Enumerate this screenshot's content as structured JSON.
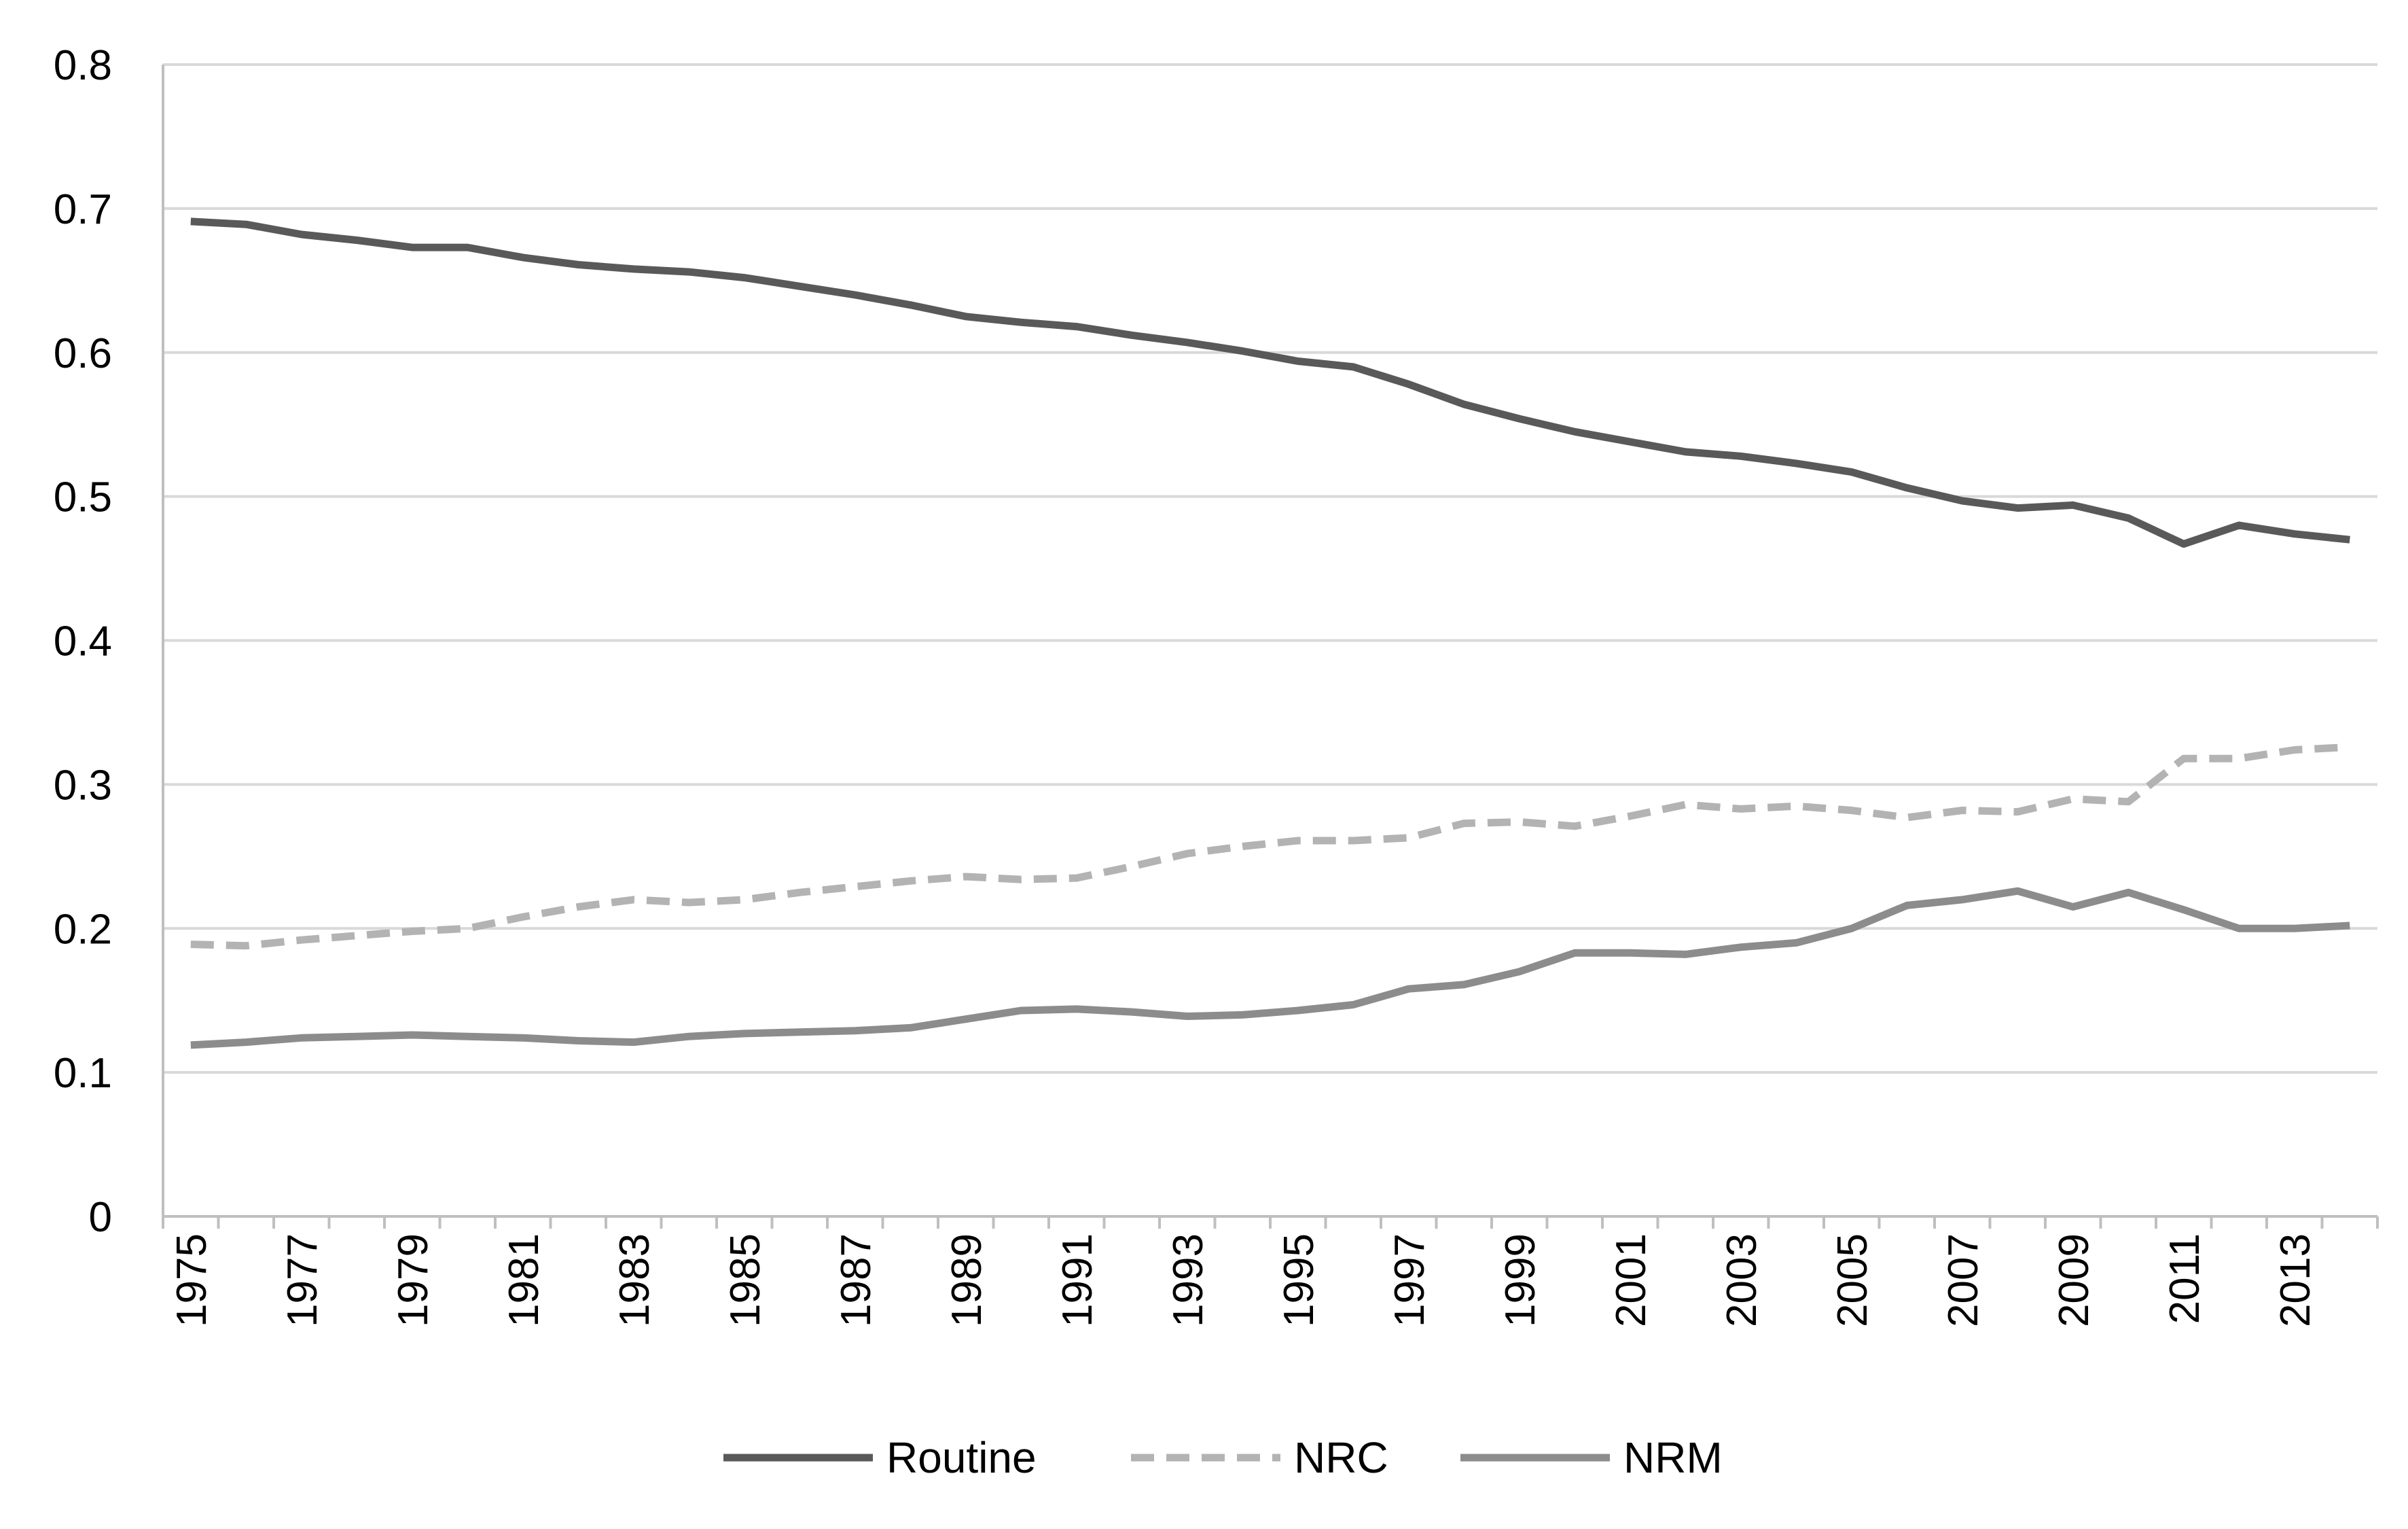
{
  "chart_data": {
    "type": "line",
    "title": "",
    "xlabel": "",
    "ylabel": "",
    "ylim": [
      0,
      0.8
    ],
    "yticks": [
      "0",
      "0.1",
      "0.2",
      "0.3",
      "0.4",
      "0.5",
      "0.6",
      "0.7",
      "0.8"
    ],
    "x": [
      1975,
      1976,
      1977,
      1978,
      1979,
      1980,
      1981,
      1982,
      1983,
      1984,
      1985,
      1986,
      1987,
      1988,
      1989,
      1990,
      1991,
      1992,
      1993,
      1994,
      1995,
      1996,
      1997,
      1998,
      1999,
      2000,
      2001,
      2002,
      2003,
      2004,
      2005,
      2006,
      2007,
      2008,
      2009,
      2010,
      2011,
      2012,
      2013,
      2014
    ],
    "xtick_labels": [
      "1975",
      "1977",
      "1979",
      "1981",
      "1983",
      "1985",
      "1987",
      "1989",
      "1991",
      "1993",
      "1995",
      "1997",
      "1999",
      "2001",
      "2003",
      "2005",
      "2007",
      "2009",
      "2011",
      "2013"
    ],
    "grid": "horizontal",
    "legend_position": "bottom",
    "series": [
      {
        "name": "Routine",
        "style": "solid",
        "color": "#595959",
        "values": [
          0.691,
          0.689,
          0.682,
          0.678,
          0.673,
          0.673,
          0.666,
          0.661,
          0.658,
          0.656,
          0.652,
          0.646,
          0.64,
          0.633,
          0.625,
          0.621,
          0.618,
          0.612,
          0.607,
          0.601,
          0.594,
          0.59,
          0.578,
          0.564,
          0.554,
          0.545,
          0.538,
          0.531,
          0.528,
          0.523,
          0.517,
          0.506,
          0.497,
          0.492,
          0.494,
          0.485,
          0.467,
          0.48,
          0.474,
          0.47
        ]
      },
      {
        "name": "NRC",
        "style": "dashed",
        "color": "#b3b3b3",
        "values": [
          0.189,
          0.188,
          0.192,
          0.195,
          0.198,
          0.2,
          0.208,
          0.215,
          0.22,
          0.218,
          0.22,
          0.225,
          0.229,
          0.233,
          0.236,
          0.234,
          0.235,
          0.243,
          0.252,
          0.257,
          0.261,
          0.261,
          0.263,
          0.273,
          0.274,
          0.271,
          0.278,
          0.286,
          0.283,
          0.285,
          0.282,
          0.277,
          0.282,
          0.281,
          0.29,
          0.288,
          0.318,
          0.318,
          0.324,
          0.326
        ]
      },
      {
        "name": "NRM",
        "style": "solid",
        "color": "#8c8c8c",
        "values": [
          0.119,
          0.121,
          0.124,
          0.125,
          0.126,
          0.125,
          0.124,
          0.122,
          0.121,
          0.125,
          0.127,
          0.128,
          0.129,
          0.131,
          0.137,
          0.143,
          0.144,
          0.142,
          0.139,
          0.14,
          0.143,
          0.147,
          0.158,
          0.161,
          0.17,
          0.183,
          0.183,
          0.182,
          0.187,
          0.19,
          0.2,
          0.216,
          0.22,
          0.226,
          0.215,
          0.225,
          0.213,
          0.2,
          0.2,
          0.202
        ]
      }
    ]
  }
}
